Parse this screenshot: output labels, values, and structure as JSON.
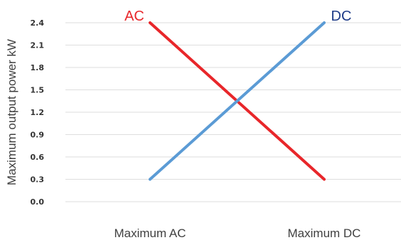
{
  "chart_data": {
    "type": "line",
    "categories": [
      "Maximum AC",
      "Maximum DC"
    ],
    "ylabel": "Maximum output power kW",
    "ylim": [
      0,
      2.4
    ],
    "yticks": [
      "0.0",
      "0.3",
      "0.6",
      "0.9",
      "1.2",
      "1.5",
      "1.8",
      "2.1",
      "2.4"
    ],
    "grid": true,
    "series": [
      {
        "name": "AC",
        "values": [
          2.4,
          0.3
        ],
        "color": "#e8262a"
      },
      {
        "name": "DC",
        "values": [
          0.3,
          2.4
        ],
        "color": "#5b9bd5",
        "label_color": "#1f3c88"
      }
    ]
  }
}
